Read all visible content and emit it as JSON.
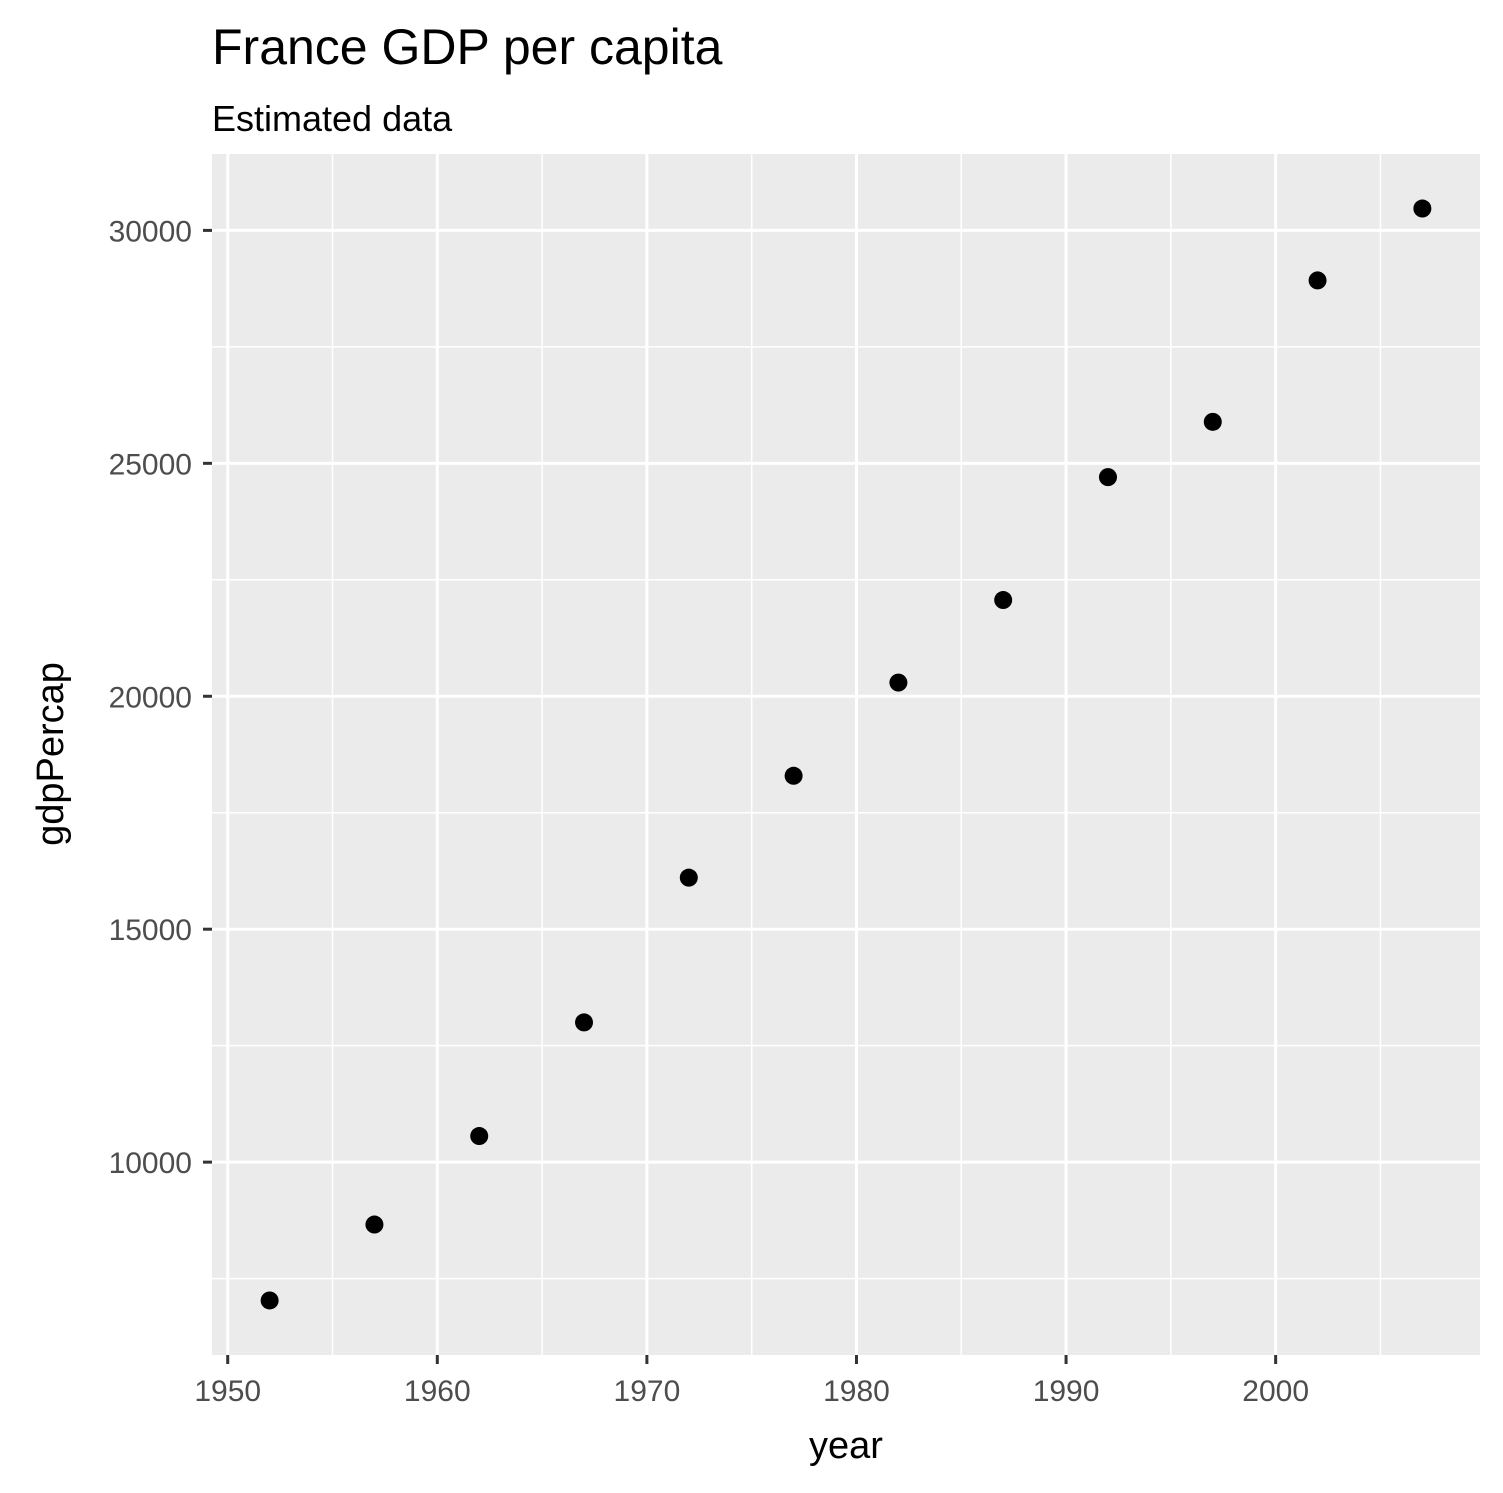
{
  "chart_data": {
    "type": "scatter",
    "title": "France GDP per capita",
    "subtitle": "Estimated data",
    "xlabel": "year",
    "ylabel": "gdpPercap",
    "xlim": [
      1949.25,
      2009.75
    ],
    "ylim": [
      5860,
      31640
    ],
    "x_ticks": [
      1950,
      1960,
      1970,
      1980,
      1990,
      2000
    ],
    "x_minor_ticks": [
      1955,
      1965,
      1975,
      1985,
      1995,
      2005
    ],
    "y_ticks": [
      10000,
      15000,
      20000,
      25000,
      30000
    ],
    "y_minor_ticks": [
      7500,
      12500,
      17500,
      22500,
      27500
    ],
    "x_tick_labels": [
      "1950",
      "1960",
      "1970",
      "1980",
      "1990",
      "2000"
    ],
    "y_tick_labels": [
      "10000",
      "15000",
      "20000",
      "25000",
      "30000"
    ],
    "grid": true,
    "panel_background": "#ebebeb",
    "point_color": "#000000",
    "x": [
      1952,
      1957,
      1962,
      1967,
      1972,
      1977,
      1982,
      1987,
      1992,
      1997,
      2002,
      2007
    ],
    "y": [
      7030,
      8660,
      10560,
      12999,
      16107,
      18293,
      20294,
      22066,
      24704,
      25890,
      28926,
      30470
    ]
  }
}
